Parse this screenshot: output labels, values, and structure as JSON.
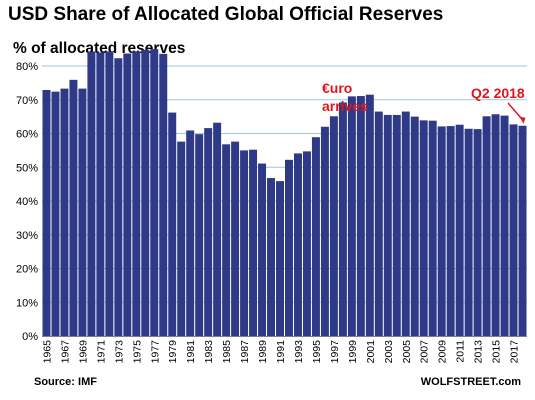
{
  "title": "USD Share of Allocated Global Official Reserves",
  "subtitle": "% of allocated reserves",
  "source": "Source: IMF",
  "credit": "WOLFSTREET.com",
  "colors": {
    "bar": "#2E3A87",
    "grid": "#9DC3E6",
    "annotation": "#E0161F",
    "text": "#000000"
  },
  "annotations": [
    {
      "text_line1": "€uro",
      "text_line2": "arrives"
    },
    {
      "text": "Q2 2018"
    }
  ],
  "chart_data": {
    "type": "bar",
    "title": "USD Share of Allocated Global Official Reserves",
    "ylabel": "% of allocated reserves",
    "ylim": [
      0,
      80
    ],
    "yticks": [
      "0%",
      "10%",
      "20%",
      "30%",
      "40%",
      "50%",
      "60%",
      "70%",
      "80%"
    ],
    "ytick_values": [
      0,
      10,
      20,
      30,
      40,
      50,
      60,
      70,
      80
    ],
    "grid": true,
    "categories": [
      "1965",
      "1966",
      "1967",
      "1968",
      "1969",
      "1970",
      "1971",
      "1972",
      "1973",
      "1974",
      "1975",
      "1976",
      "1977",
      "1978",
      "1979",
      "1980",
      "1981",
      "1982",
      "1983",
      "1984",
      "1985",
      "1986",
      "1987",
      "1988",
      "1989",
      "1990",
      "1991",
      "1992",
      "1993",
      "1994",
      "1995",
      "1996",
      "1997",
      "1998",
      "1999",
      "2000",
      "2001",
      "2002",
      "2003",
      "2004",
      "2005",
      "2006",
      "2007",
      "2008",
      "2009",
      "2010",
      "2011",
      "2012",
      "2013",
      "2014",
      "2015",
      "2016",
      "2017",
      "Q2 2018"
    ],
    "xtick_labels": [
      "1965",
      "1967",
      "1969",
      "1971",
      "1973",
      "1975",
      "1977",
      "1979",
      "1981",
      "1983",
      "1985",
      "1987",
      "1989",
      "1991",
      "1993",
      "1995",
      "1997",
      "1999",
      "2001",
      "2003",
      "2005",
      "2007",
      "2009",
      "2011",
      "2013",
      "2015",
      "2017"
    ],
    "values": [
      72.9,
      72.4,
      73.3,
      75.9,
      73.3,
      84.3,
      84.0,
      84.3,
      82.3,
      83.7,
      84.3,
      84.8,
      85.0,
      83.6,
      66.2,
      57.6,
      60.9,
      59.8,
      61.6,
      63.2,
      56.8,
      57.6,
      55.0,
      55.2,
      51.1,
      46.8,
      45.9,
      52.2,
      54.1,
      54.7,
      58.9,
      62.0,
      65.1,
      69.2,
      71.0,
      71.1,
      71.5,
      66.5,
      65.5,
      65.5,
      66.5,
      65.0,
      63.9,
      63.8,
      62.1,
      62.2,
      62.6,
      61.4,
      61.3,
      65.1,
      65.7,
      65.3,
      62.7,
      62.3
    ]
  }
}
